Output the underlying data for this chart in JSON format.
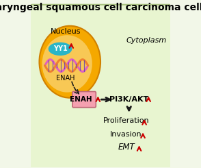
{
  "title": "laryngeal squamous cell carcinoma cells",
  "title_fontsize": 10,
  "title_fontweight": "bold",
  "bg_color": "#f2f7e8",
  "panel_bg": "#e8f5d0",
  "nucleus_outer_color": "#f5a800",
  "nucleus_inner_color": "#f8c855",
  "yy1_color": "#2ab5c8",
  "yy1_text": "YY1",
  "nucleus_label": "Nucleus",
  "cytoplasm_label": "Cytoplasm",
  "enah_box_color": "#f5a0b0",
  "enah_label_nucleus": "ENAH",
  "enah_label_cyto": "ENAH",
  "pi3k_label": "PI3K/AKT",
  "proliferation_label": "Proliferation",
  "invasion_label": "Invasion",
  "emt_label": "EMT",
  "arrow_color": "#1a1a1a",
  "red_arrow_color": "#cc0000",
  "border_color": "#a8c080"
}
